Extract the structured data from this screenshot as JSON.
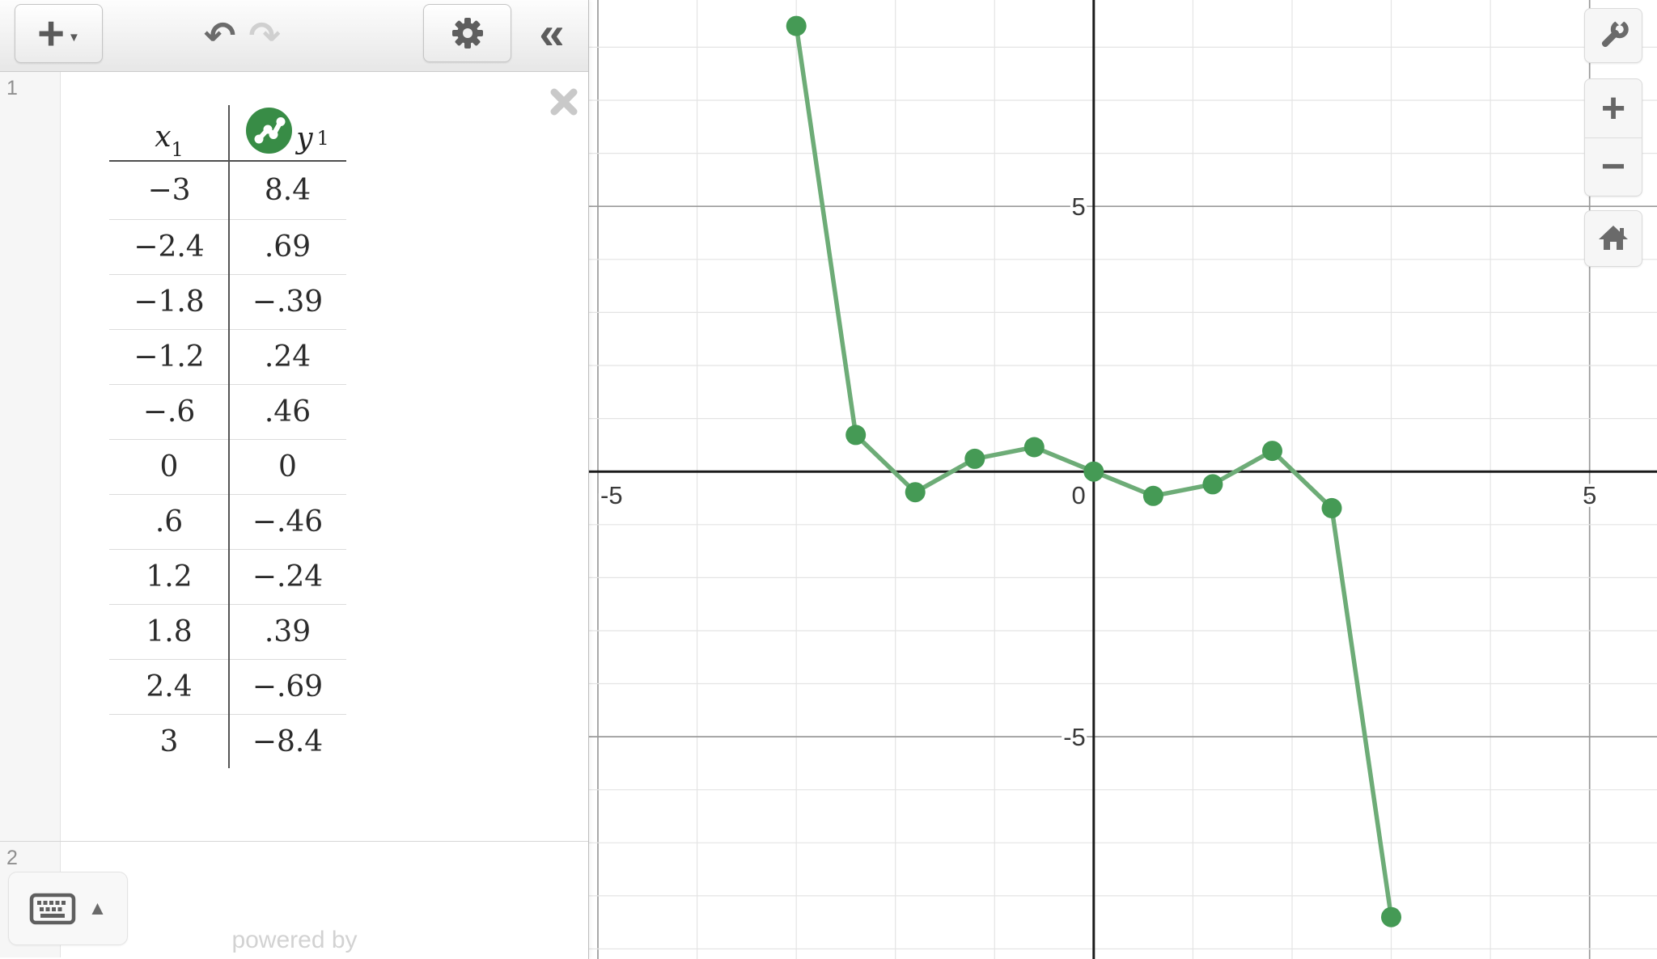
{
  "toolbar": {
    "add_button": {
      "plus": "+",
      "caret": "▼"
    },
    "undo_icon": "↶",
    "redo_icon": "↷",
    "collapse_icon": "«"
  },
  "expression_list": {
    "row1": {
      "index": "1"
    },
    "row2": {
      "index": "2"
    },
    "table": {
      "col1_header": {
        "letter": "x",
        "sub": "1"
      },
      "col2_header": {
        "letter": "y",
        "sub": "1"
      },
      "rows": [
        [
          "−3",
          "8.4"
        ],
        [
          "−2.4",
          ".69"
        ],
        [
          "−1.8",
          "−.39"
        ],
        [
          "−1.2",
          ".24"
        ],
        [
          "−.6",
          ".46"
        ],
        [
          "0",
          "0"
        ],
        [
          ".6",
          "−.46"
        ],
        [
          "1.2",
          "−.24"
        ],
        [
          "1.8",
          ".39"
        ],
        [
          "2.4",
          "−.69"
        ],
        [
          "3",
          "−8.4"
        ]
      ]
    }
  },
  "footer": {
    "powered_by": "powered by",
    "keyboard_caret": "▲"
  },
  "graph_controls": {
    "zoom_in": "+",
    "zoom_out": "−"
  },
  "chart_data": {
    "type": "line",
    "points": [
      [
        -3,
        8.4
      ],
      [
        -2.4,
        0.69
      ],
      [
        -1.8,
        -0.39
      ],
      [
        -1.2,
        0.24
      ],
      [
        -0.6,
        0.46
      ],
      [
        0,
        0
      ],
      [
        0.6,
        -0.46
      ],
      [
        1.2,
        -0.24
      ],
      [
        1.8,
        0.39
      ],
      [
        2.4,
        -0.69
      ],
      [
        3,
        -8.4
      ]
    ],
    "x_range": [
      -5.09,
      5.68
    ],
    "y_range": [
      -9.19,
      8.89
    ],
    "grid": true,
    "minor_step": 1,
    "major_step": 5,
    "x_tick_labels": [
      {
        "v": -5,
        "t": "-5"
      },
      {
        "v": 0,
        "t": "0"
      },
      {
        "v": 5,
        "t": "5"
      }
    ],
    "y_tick_labels": [
      {
        "v": 5,
        "t": "5"
      },
      {
        "v": -5,
        "t": "-5"
      }
    ],
    "colors": {
      "line": "#6dac77",
      "point": "#459a55",
      "axis": "#1b1b1b",
      "major_grid": "#9a9a9a",
      "minor_grid": "#e4e4e4",
      "label": "#3a3a3a",
      "brand_green": "#388c46"
    }
  }
}
